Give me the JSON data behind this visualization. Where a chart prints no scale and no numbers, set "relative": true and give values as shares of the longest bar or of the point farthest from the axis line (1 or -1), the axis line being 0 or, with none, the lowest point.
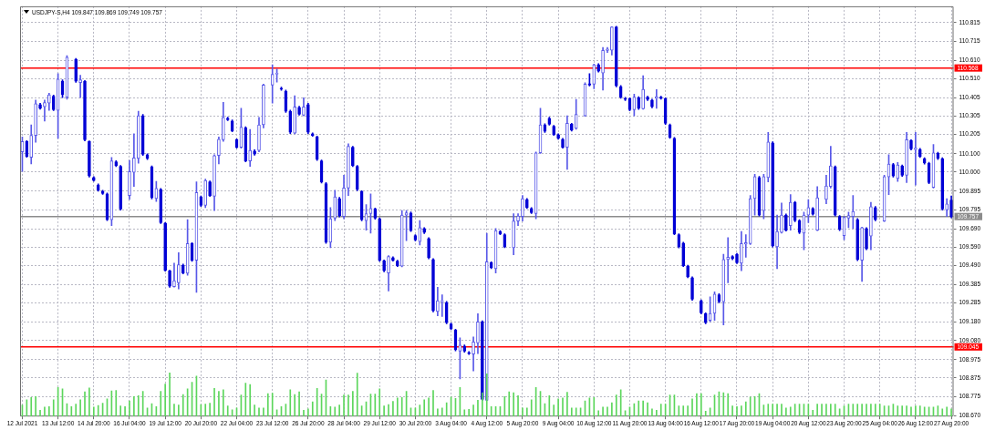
{
  "chart_data": [
    {
      "type": "candlestick",
      "title": "USDJPY-S,H4 109.847 109.869 109.749 109.757",
      "categories": [
        "12 Jul 2021",
        null,
        null,
        null,
        null,
        null,
        null,
        null,
        "13 Jul 12:00",
        null,
        null,
        null,
        null,
        null,
        null,
        null,
        "14 Jul 20:00",
        null,
        null,
        null,
        null,
        null,
        null,
        null,
        "16 Jul 04:00",
        null,
        null,
        null,
        null,
        null,
        null,
        null,
        "19 Jul 12:00",
        null,
        null,
        null,
        null,
        null,
        null,
        null,
        "20 Jul 20:00",
        null,
        null,
        null,
        null,
        null,
        null,
        null,
        "22 Jul 04:00",
        null,
        null,
        null,
        null,
        null,
        null,
        null,
        "23 Jul 12:00",
        null,
        null,
        null,
        null,
        null,
        null,
        null,
        "26 Jul 20:00",
        null,
        null,
        null,
        null,
        null,
        null,
        null,
        "28 Jul 04:00",
        null,
        null,
        null,
        null,
        null,
        null,
        null,
        "29 Jul 12:00",
        null,
        null,
        null,
        null,
        null,
        null,
        null,
        "30 Jul 20:00",
        null,
        null,
        null,
        null,
        null,
        null,
        null,
        "3 Aug 04:00",
        null,
        null,
        null,
        null,
        null,
        null,
        null,
        "4 Aug 12:00",
        null,
        null,
        null,
        null,
        null,
        null,
        null,
        "5 Aug 20:00",
        null,
        null,
        null,
        null,
        null,
        null,
        null,
        "9 Aug 04:00",
        null,
        null,
        null,
        null,
        null,
        null,
        null,
        "10 Aug 12:00",
        null,
        null,
        null,
        null,
        null,
        null,
        null,
        "11 Aug 20:00",
        null,
        null,
        null,
        null,
        null,
        null,
        null,
        "13 Aug 04:00",
        null,
        null,
        null,
        null,
        null,
        null,
        null,
        "16 Aug 12:00",
        null,
        null,
        null,
        null,
        null,
        null,
        null,
        "17 Aug 20:00",
        null,
        null,
        null,
        null,
        null,
        null,
        null,
        "19 Aug 04:00",
        null,
        null,
        null,
        null,
        null,
        null,
        null,
        "20 Aug 12:00",
        null,
        null,
        null,
        null,
        null,
        null,
        null,
        "23 Aug 20:00",
        null,
        null,
        null,
        null,
        null,
        null,
        null,
        "25 Aug 04:00",
        null,
        null,
        null,
        null,
        null,
        null,
        null,
        "26 Aug 12:00",
        null,
        null,
        null,
        null,
        null,
        null,
        null,
        "27 Aug 20:00"
      ],
      "ohlc": [
        [
          110.11,
          110.192,
          110.003,
          110.167
        ],
        [
          110.167,
          110.172,
          110.08,
          110.085
        ],
        [
          110.08,
          110.258,
          110.044,
          110.2
        ],
        [
          110.2,
          110.393,
          110.163,
          110.373
        ],
        [
          110.368,
          110.375,
          110.343,
          110.348
        ],
        [
          110.356,
          110.393,
          110.278,
          110.379
        ],
        [
          110.376,
          110.43,
          110.337,
          110.422
        ],
        [
          110.414,
          110.42,
          110.335,
          110.34
        ],
        [
          110.337,
          110.537,
          110.184,
          110.508
        ],
        [
          110.496,
          110.504,
          110.406,
          110.422
        ],
        [
          110.409,
          110.636,
          110.397,
          110.627
        ],
        null,
        [
          110.614,
          110.62,
          110.49,
          110.496
        ],
        [
          110.488,
          110.529,
          110.406,
          110.504
        ],
        [
          110.496,
          110.5,
          110.17,
          110.176
        ],
        [
          110.167,
          110.17,
          109.972,
          109.978
        ],
        [
          109.97,
          109.975,
          109.95,
          109.954
        ],
        [
          109.929,
          109.935,
          109.895,
          109.9
        ],
        [
          109.896,
          109.9,
          109.878,
          109.883
        ],
        [
          109.88,
          109.885,
          109.735,
          109.74
        ],
        [
          109.74,
          110.08,
          109.707,
          110.061
        ],
        [
          110.056,
          110.062,
          110.03,
          110.036
        ],
        [
          110.031,
          110.036,
          109.792,
          109.798
        ],
        null,
        [
          109.872,
          110.064,
          109.85,
          110.003
        ],
        [
          109.998,
          110.209,
          109.921,
          110.077
        ],
        [
          110.074,
          110.332,
          110.048,
          110.307
        ],
        [
          110.307,
          110.315,
          110.09,
          110.097
        ],
        [
          110.094,
          110.1,
          110.068,
          110.074
        ],
        [
          110.028,
          110.034,
          109.853,
          109.86
        ],
        [
          109.855,
          109.949,
          109.839,
          109.91
        ],
        [
          109.905,
          109.91,
          109.718,
          109.724
        ],
        [
          109.721,
          109.724,
          109.458,
          109.464
        ],
        [
          109.461,
          109.464,
          109.37,
          109.376
        ],
        [
          109.374,
          109.502,
          109.371,
          109.407
        ],
        [
          109.395,
          109.56,
          109.362,
          109.494
        ],
        [
          109.491,
          109.497,
          109.444,
          109.449
        ],
        [
          109.448,
          109.74,
          109.436,
          109.609
        ],
        [
          109.609,
          109.615,
          109.512,
          109.518
        ],
        [
          109.518,
          109.946,
          109.343,
          109.888
        ],
        [
          109.864,
          109.87,
          109.812,
          109.818
        ],
        [
          109.818,
          109.962,
          109.806,
          109.954
        ],
        [
          109.946,
          109.952,
          109.866,
          109.872
        ],
        [
          109.868,
          110.094,
          109.79,
          110.09
        ],
        [
          110.09,
          110.192,
          110.044,
          110.179
        ],
        [
          110.176,
          110.381,
          110.167,
          110.299
        ],
        [
          110.294,
          110.3,
          110.28,
          110.286
        ],
        [
          110.279,
          110.285,
          110.22,
          110.225
        ],
        [
          110.176,
          110.182,
          110.13,
          110.135
        ],
        [
          110.135,
          110.348,
          110.13,
          110.245
        ],
        [
          110.241,
          110.248,
          110.055,
          110.061
        ],
        [
          110.061,
          110.233,
          110.031,
          110.118
        ],
        [
          110.115,
          110.122,
          110.092,
          110.098
        ],
        [
          110.118,
          110.299,
          110.11,
          110.258
        ],
        [
          110.258,
          110.48,
          110.241,
          110.475
        ],
        null,
        [
          110.475,
          110.586,
          110.376,
          110.534
        ],
        [
          110.534,
          110.562,
          110.491,
          110.54
        ],
        [
          110.458,
          110.464,
          110.446,
          110.452
        ],
        [
          110.442,
          110.448,
          110.326,
          110.332
        ],
        [
          110.332,
          110.338,
          110.21,
          110.217
        ],
        [
          110.212,
          110.417,
          110.209,
          110.356
        ],
        [
          110.353,
          110.36,
          110.31,
          110.315
        ],
        [
          110.31,
          110.406,
          110.307,
          110.356
        ],
        [
          110.368,
          110.375,
          110.21,
          110.217
        ],
        [
          110.209,
          110.214,
          110.195,
          110.2
        ],
        [
          110.192,
          110.197,
          110.063,
          110.069
        ],
        [
          110.061,
          110.066,
          109.94,
          109.946
        ],
        [
          109.937,
          109.943,
          109.61,
          109.617
        ],
        [
          109.617,
          109.806,
          109.587,
          109.745
        ],
        [
          109.748,
          109.9,
          109.735,
          109.864
        ],
        [
          109.855,
          109.862,
          109.755,
          109.762
        ],
        [
          109.757,
          109.982,
          109.745,
          109.913
        ],
        [
          109.913,
          110.154,
          109.872,
          110.14
        ],
        [
          110.135,
          110.14,
          110.03,
          110.036
        ],
        [
          110.031,
          110.036,
          109.898,
          109.905
        ],
        [
          109.893,
          109.898,
          109.734,
          109.74
        ],
        [
          109.735,
          109.822,
          109.683,
          109.773
        ],
        [
          109.773,
          109.88,
          109.666,
          109.801
        ],
        [
          109.798,
          109.804,
          109.742,
          109.748
        ],
        [
          109.745,
          109.75,
          109.512,
          109.518
        ],
        [
          109.515,
          109.52,
          109.455,
          109.461
        ],
        [
          109.449,
          109.543,
          109.351,
          109.538
        ],
        [
          109.532,
          109.537,
          109.513,
          109.518
        ],
        [
          109.514,
          109.519,
          109.484,
          109.489
        ],
        [
          109.486,
          109.79,
          109.482,
          109.765
        ],
        [
          109.765,
          109.79,
          109.625,
          109.778
        ],
        [
          109.776,
          109.782,
          109.675,
          109.68
        ],
        [
          109.653,
          109.658,
          109.624,
          109.629
        ],
        [
          109.62,
          109.735,
          109.601,
          109.696
        ],
        [
          109.691,
          109.696,
          109.664,
          109.67
        ],
        [
          109.637,
          109.642,
          109.526,
          109.532
        ],
        [
          109.522,
          109.527,
          109.236,
          109.242
        ],
        [
          109.239,
          109.371,
          109.215,
          109.297
        ],
        [
          109.292,
          109.33,
          109.211,
          109.297
        ],
        [
          109.288,
          109.294,
          109.171,
          109.177
        ],
        [
          109.17,
          109.175,
          109.139,
          109.144
        ],
        [
          109.137,
          109.142,
          109.023,
          109.029
        ],
        [
          109.022,
          109.095,
          108.87,
          109.055
        ],
        [
          109.05,
          109.056,
          109.016,
          109.022
        ],
        [
          109.014,
          109.02,
          109.003,
          109.009
        ],
        [
          109.006,
          109.1,
          108.914,
          109.072
        ],
        [
          109.067,
          109.226,
          109.009,
          109.182
        ],
        [
          109.182,
          109.188,
          108.753,
          108.759
        ],
        [
          108.754,
          109.666,
          108.752,
          109.51
        ],
        [
          109.505,
          109.51,
          109.472,
          109.477
        ],
        [
          109.472,
          109.691,
          109.449,
          109.68
        ],
        [
          109.675,
          109.68,
          109.658,
          109.663
        ],
        [
          109.658,
          109.663,
          109.587,
          109.592
        ],
        null,
        [
          109.587,
          109.773,
          109.548,
          109.732
        ],
        [
          109.732,
          109.773,
          109.707,
          109.76
        ],
        [
          109.757,
          109.872,
          109.732,
          109.855
        ],
        [
          109.85,
          109.856,
          109.8,
          109.806
        ],
        [
          109.801,
          109.806,
          109.773,
          109.778
        ],
        [
          109.773,
          110.11,
          109.745,
          110.105
        ],
        [
          110.105,
          110.348,
          110.102,
          110.258
        ],
        [
          110.258,
          110.264,
          110.216,
          110.222
        ],
        [
          110.294,
          110.3,
          110.256,
          110.261
        ],
        [
          110.25,
          110.255,
          110.2,
          110.205
        ],
        [
          110.204,
          110.209,
          110.179,
          110.184
        ],
        [
          110.179,
          110.184,
          110.13,
          110.135
        ],
        [
          110.135,
          110.307,
          110.015,
          110.266
        ],
        [
          110.261,
          110.266,
          110.223,
          110.228
        ],
        [
          110.238,
          110.397,
          110.233,
          110.315
        ],
        null,
        [
          110.307,
          110.488,
          110.304,
          110.48
        ],
        [
          110.483,
          110.537,
          110.47,
          110.475
        ],
        [
          110.48,
          110.59,
          110.455,
          110.586
        ],
        [
          110.586,
          110.592,
          110.545,
          110.55
        ],
        [
          110.54,
          110.68,
          110.447,
          110.664
        ],
        [
          110.664,
          110.68,
          110.652,
          110.672
        ],
        [
          110.665,
          110.794,
          110.639,
          110.792
        ],
        [
          110.792,
          110.796,
          110.465,
          110.471
        ],
        [
          110.466,
          110.472,
          110.403,
          110.409
        ],
        [
          110.402,
          110.408,
          110.39,
          110.396
        ],
        [
          110.401,
          110.406,
          110.334,
          110.34
        ],
        [
          110.34,
          110.425,
          110.307,
          110.409
        ],
        [
          110.406,
          110.412,
          110.342,
          110.348
        ],
        [
          110.345,
          110.526,
          110.343,
          110.452
        ],
        [
          110.409,
          110.414,
          110.39,
          110.396
        ],
        [
          110.393,
          110.398,
          110.35,
          110.356
        ],
        [
          110.402,
          110.45,
          110.348,
          110.411
        ],
        [
          110.409,
          110.414,
          110.397,
          110.402
        ],
        [
          110.401,
          110.406,
          110.26,
          110.266
        ],
        [
          110.258,
          110.263,
          110.183,
          110.189
        ],
        [
          110.184,
          110.189,
          109.657,
          109.663
        ],
        [
          109.658,
          109.663,
          109.586,
          109.592
        ],
        [
          109.612,
          109.617,
          109.483,
          109.489
        ],
        [
          109.486,
          109.491,
          109.422,
          109.428
        ],
        [
          109.423,
          109.428,
          109.299,
          109.305
        ],
        null,
        [
          109.297,
          109.302,
          109.225,
          109.231
        ],
        [
          109.226,
          109.232,
          109.171,
          109.177
        ],
        [
          109.19,
          109.318,
          109.182,
          109.228
        ],
        [
          109.228,
          109.346,
          109.19,
          109.333
        ],
        [
          109.33,
          109.336,
          109.286,
          109.292
        ],
        [
          109.292,
          109.551,
          109.165,
          109.522
        ],
        [
          109.522,
          109.642,
          109.395,
          109.535
        ],
        [
          109.538,
          109.543,
          109.521,
          109.527
        ],
        [
          109.551,
          109.556,
          109.499,
          109.505
        ],
        [
          109.502,
          109.675,
          109.461,
          109.609
        ],
        [
          109.606,
          109.658,
          109.535,
          109.614
        ],
        [
          109.609,
          109.872,
          109.604,
          109.855
        ],
        [
          109.855,
          109.987,
          109.765,
          109.975
        ],
        [
          109.97,
          109.976,
          109.759,
          109.765
        ],
        [
          109.79,
          109.987,
          109.745,
          109.975
        ],
        [
          109.97,
          110.217,
          109.946,
          110.164
        ],
        [
          110.159,
          110.165,
          109.591,
          109.597
        ],
        [
          109.592,
          109.765,
          109.472,
          109.675
        ],
        [
          109.67,
          109.831,
          109.666,
          109.765
        ],
        [
          109.765,
          109.771,
          109.677,
          109.683
        ],
        [
          109.707,
          109.877,
          109.683,
          109.834
        ],
        [
          109.834,
          109.84,
          109.729,
          109.735
        ],
        [
          109.735,
          109.74,
          109.664,
          109.67
        ],
        [
          109.666,
          109.781,
          109.576,
          109.765
        ],
        [
          109.765,
          109.85,
          109.724,
          109.806
        ],
        [
          109.801,
          109.806,
          109.764,
          109.77
        ],
        [
          109.683,
          109.921,
          109.68,
          109.859
        ],
        null,
        [
          109.85,
          109.982,
          109.827,
          109.924
        ],
        [
          109.921,
          110.14,
          109.913,
          110.033
        ],
        [
          110.028,
          110.034,
          109.759,
          109.765
        ],
        [
          109.757,
          109.762,
          109.68,
          109.686
        ],
        [
          109.653,
          109.757,
          109.63,
          109.752
        ],
        [
          109.748,
          109.781,
          109.696,
          109.762
        ],
        [
          109.757,
          109.872,
          109.691,
          109.785
        ],
        [
          109.74,
          109.746,
          109.516,
          109.522
        ],
        [
          109.518,
          109.699,
          109.403,
          109.696
        ],
        [
          109.691,
          109.697,
          109.575,
          109.581
        ],
        [
          109.65,
          109.834,
          109.576,
          109.811
        ],
        [
          109.806,
          109.812,
          109.734,
          109.74
        ],
        null,
        [
          109.732,
          109.982,
          109.73,
          109.975
        ],
        [
          109.974,
          110.094,
          109.877,
          110.044
        ],
        [
          110.041,
          110.047,
          109.972,
          109.978
        ],
        [
          109.965,
          110.052,
          109.949,
          110.039
        ],
        [
          110.033,
          110.039,
          109.976,
          109.982
        ],
        [
          109.982,
          110.217,
          109.942,
          110.176
        ],
        [
          110.171,
          110.177,
          110.12,
          110.126
        ],
        [
          110.123,
          110.217,
          109.929,
          110.13
        ],
        [
          110.123,
          110.129,
          110.079,
          110.085
        ],
        [
          110.072,
          110.078,
          110.043,
          110.049
        ],
        [
          110.047,
          110.053,
          109.936,
          109.942
        ],
        [
          109.916,
          110.151,
          109.913,
          110.105
        ],
        [
          110.102,
          110.108,
          110.068,
          110.074
        ],
        [
          110.072,
          110.078,
          109.792,
          109.798
        ],
        [
          109.793,
          109.855,
          109.757,
          109.826
        ],
        [
          109.847,
          109.869,
          109.749,
          109.757
        ]
      ],
      "colors": [
        "#5858e8",
        "#0000d6",
        "#5858e8",
        "#5858e8",
        "#0000d6",
        "#5858e8",
        "#5858e8",
        "#0000d6",
        "#5858e8",
        "#0000d6",
        "#5858e8",
        null,
        "#0000d6",
        "#5858e8",
        "#0000d6",
        "#0000d6",
        "#0000d6",
        "#0000d6",
        "#0000d6",
        "#0000d6",
        "#5858e8",
        "#0000d6",
        "#0000d6",
        null,
        "#5858e8",
        "#5858e8",
        "#5858e8",
        "#0000d6",
        "#0000d6",
        "#0000d6",
        "#5858e8",
        "#0000d6",
        "#0000d6",
        "#0000d6",
        "#5858e8",
        "#5858e8",
        "#0000d6",
        "#5858e8",
        "#0000d6",
        "#5858e8",
        "#0000d6",
        "#5858e8",
        "#0000d6",
        "#5858e8",
        "#5858e8",
        "#5858e8",
        "#0000d6",
        "#0000d6",
        "#0000d6",
        "#5858e8",
        "#0000d6",
        "#5858e8",
        "#0000d6",
        "#5858e8",
        "#5858e8",
        null,
        "#5858e8",
        "#5858e8",
        "#0000d6",
        "#0000d6",
        "#0000d6",
        "#5858e8",
        "#0000d6",
        "#5858e8",
        "#0000d6",
        "#0000d6",
        "#0000d6",
        "#0000d6",
        "#0000d6",
        "#5858e8",
        "#5858e8",
        "#0000d6",
        "#5858e8",
        "#5858e8",
        "#0000d6",
        "#0000d6",
        "#0000d6",
        "#5858e8",
        "#5858e8",
        "#0000d6",
        "#0000d6",
        "#0000d6",
        "#5858e8",
        "#0000d6",
        "#0000d6",
        "#5858e8",
        "#5858e8",
        "#0000d6",
        "#0000d6",
        "#5858e8",
        "#0000d6",
        "#0000d6",
        "#0000d6",
        "#5858e8",
        "#5858e8",
        "#0000d6",
        "#0000d6",
        "#0000d6",
        "#5858e8",
        "#0000d6",
        "#0000d6",
        "#5858e8",
        "#5858e8",
        "#0000d6",
        "#5858e8",
        "#0000d6",
        "#5858e8",
        "#0000d6",
        "#0000d6",
        null,
        "#5858e8",
        "#5858e8",
        "#5858e8",
        "#0000d6",
        "#0000d6",
        "#5858e8",
        "#5858e8",
        "#0000d6",
        "#0000d6",
        "#0000d6",
        "#0000d6",
        "#0000d6",
        "#5858e8",
        "#0000d6",
        "#5858e8",
        null,
        "#5858e8",
        "#0000d6",
        "#5858e8",
        "#0000d6",
        "#5858e8",
        "#5858e8",
        "#5858e8",
        "#0000d6",
        "#0000d6",
        "#0000d6",
        "#0000d6",
        "#5858e8",
        "#0000d6",
        "#5858e8",
        "#0000d6",
        "#0000d6",
        "#5858e8",
        "#0000d6",
        "#0000d6",
        "#0000d6",
        "#0000d6",
        "#0000d6",
        "#0000d6",
        "#0000d6",
        "#0000d6",
        null,
        "#0000d6",
        "#0000d6",
        "#5858e8",
        "#5858e8",
        "#0000d6",
        "#5858e8",
        "#5858e8",
        "#0000d6",
        "#0000d6",
        "#5858e8",
        "#5858e8",
        "#5858e8",
        "#5858e8",
        "#0000d6",
        "#5858e8",
        "#5858e8",
        "#0000d6",
        "#5858e8",
        "#5858e8",
        "#0000d6",
        "#5858e8",
        "#0000d6",
        "#0000d6",
        "#5858e8",
        "#5858e8",
        "#0000d6",
        "#5858e8",
        null,
        "#5858e8",
        "#5858e8",
        "#0000d6",
        "#0000d6",
        "#5858e8",
        "#5858e8",
        "#5858e8",
        "#0000d6",
        "#5858e8",
        "#0000d6",
        "#5858e8",
        "#0000d6",
        null,
        "#5858e8",
        "#5858e8",
        "#0000d6",
        "#5858e8",
        "#0000d6",
        "#5858e8",
        "#0000d6",
        "#5858e8",
        "#0000d6",
        "#0000d6",
        "#0000d6",
        "#5858e8",
        "#0000d6",
        "#0000d6",
        "#5858e8",
        "#0000d6"
      ],
      "ylim": [
        108.665,
        110.905
      ],
      "yticks": [
        {
          "value": 108.67,
          "label": "108.670"
        },
        108.775,
        108.875,
        108.975,
        {
          "value": 109.08,
          "label": "109.080"
        },
        {
          "value": 109.18,
          "label": "109.180"
        },
        109.285,
        109.385,
        {
          "value": 109.49,
          "label": "109.490"
        },
        {
          "value": 109.59,
          "label": "109.590"
        },
        {
          "value": 109.69,
          "label": "109.690"
        },
        109.795,
        109.895,
        {
          "value": 110,
          "label": "110.000"
        },
        {
          "value": 110.1,
          "label": "110.100"
        },
        110.205,
        110.305,
        110.405,
        {
          "value": 110.51,
          "label": "110.510"
        },
        {
          "value": 110.61,
          "label": "110.610"
        },
        110.715,
        110.815
      ],
      "grid": true,
      "ref_lines": [
        {
          "axis": "y",
          "value": 110.568,
          "label": "110.568",
          "color": "#ff0000"
        },
        {
          "axis": "y",
          "value": 109.757,
          "label": "109.757",
          "color": "#8c8c8c"
        },
        {
          "axis": "y",
          "value": 109.045,
          "label": "109.045",
          "color": "#ff0000"
        }
      ]
    },
    {
      "type": "bar",
      "relative": true,
      "color": "#5cd65c",
      "categories": [
        null,
        null,
        null,
        null,
        null,
        null,
        null,
        null,
        null,
        null,
        null,
        null,
        null,
        null,
        null,
        null,
        null,
        null,
        null,
        null,
        null,
        null,
        null,
        null,
        null,
        null,
        null,
        null,
        null,
        null,
        null,
        null,
        null,
        null,
        null,
        null,
        null,
        null,
        null,
        null,
        null,
        null,
        null,
        null,
        null,
        null,
        null,
        null,
        null,
        null,
        null,
        null,
        null,
        null,
        null,
        null,
        null,
        null,
        null,
        null,
        null,
        null,
        null,
        null,
        null,
        null,
        null,
        null,
        null,
        null,
        null,
        null,
        null,
        null,
        null,
        null,
        null,
        null,
        null,
        null,
        null,
        null,
        null,
        null,
        null,
        null,
        null,
        null,
        null,
        null,
        null,
        null,
        null,
        null,
        null,
        null,
        null,
        null,
        null,
        null,
        null,
        null,
        null,
        null,
        null,
        null,
        null,
        null,
        null,
        null,
        null,
        null,
        null,
        null,
        null,
        null,
        null,
        null,
        null,
        null,
        null,
        null,
        null,
        null,
        null,
        null,
        null,
        null,
        null,
        null,
        null,
        null,
        null,
        null,
        null,
        null,
        null,
        null,
        null,
        null,
        null,
        null,
        null,
        null,
        null,
        null,
        null,
        null,
        null,
        null,
        null,
        null,
        null,
        null,
        null,
        null,
        null,
        null,
        null,
        null,
        null,
        null,
        null,
        null,
        null,
        null,
        null,
        null,
        null,
        null,
        null,
        null,
        null,
        null,
        null,
        null,
        null,
        null,
        null,
        null,
        null,
        null,
        null,
        null,
        null,
        null,
        null,
        null,
        null,
        null,
        null,
        null,
        null,
        null,
        null,
        null,
        null,
        null,
        null,
        null,
        null,
        null,
        null,
        null,
        null,
        null,
        null,
        null,
        null
      ],
      "values": [
        0.26,
        0.38,
        0.43,
        0.45,
        0.14,
        0.21,
        0.22,
        0.38,
        0.66,
        0.63,
        0.29,
        0.22,
        0.28,
        0.38,
        0.56,
        0.65,
        0.21,
        0.25,
        0.3,
        0.4,
        0.58,
        0.59,
        0.24,
        0.22,
        0.35,
        0.45,
        0.47,
        0.57,
        0.19,
        0.29,
        0.22,
        0.57,
        0.74,
        1,
        0.28,
        0.26,
        0.5,
        0.63,
        0.78,
        0.92,
        0.27,
        0.28,
        0.3,
        0.64,
        0.57,
        0.61,
        0.24,
        0.15,
        0.19,
        0.49,
        0.76,
        0.73,
        0.26,
        0.19,
        0.19,
        0.52,
        0.53,
        0.15,
        0.22,
        0.28,
        0.61,
        0.5,
        0.56,
        0.14,
        0.17,
        0.33,
        0.64,
        0.51,
        0.83,
        0.22,
        0.21,
        0.26,
        0.49,
        0.49,
        0.57,
        0.99,
        0.24,
        0.33,
        0.51,
        0.51,
        0.63,
        0.24,
        0.27,
        0.34,
        0.42,
        0.43,
        0.57,
        0.19,
        0.19,
        0.26,
        0.38,
        0.42,
        0.59,
        0.17,
        0.19,
        0.31,
        0.44,
        0.41,
        0.66,
        0.15,
        0.16,
        0.26,
        0.37,
        0.54,
        0.97,
        0.22,
        0.22,
        0.22,
        0.45,
        0.56,
        0.54,
        0.47,
        0.19,
        0.19,
        0.38,
        0.66,
        0.57,
        0.29,
        0.47,
        0.26,
        0.4,
        0.42,
        0.55,
        0.19,
        0.19,
        0.19,
        0.35,
        0.42,
        0.43,
        0.13,
        0.21,
        0.21,
        0.31,
        0.49,
        0.61,
        0.13,
        0.21,
        0.29,
        0.35,
        0.35,
        0.31,
        0.17,
        0.14,
        0.28,
        0.28,
        0.49,
        0.49,
        0.24,
        0.24,
        0.24,
        0.4,
        0.52,
        0.52,
        0.12,
        0.19,
        0.49,
        0.56,
        0.54,
        0.52,
        0.24,
        0.22,
        0.24,
        0.33,
        0.44,
        0.45,
        0.52,
        0.26,
        0.28,
        0.28,
        0.28,
        0.28,
        0.19,
        0.21,
        0.28,
        0.28,
        0.28,
        0.28,
        0.14,
        0.28,
        0.28,
        0.28,
        0.28,
        0.28,
        0.17,
        0.24,
        0.28,
        0.28,
        0.28,
        0.28,
        0.28,
        0.28,
        0.28,
        0.28,
        0.24,
        0.24,
        0.28,
        0.24,
        0.24,
        0.24,
        0.21,
        0.24,
        0.24,
        0.21,
        0.21,
        0.21,
        0.24,
        0.17,
        0.21,
        0.17
      ]
    }
  ]
}
